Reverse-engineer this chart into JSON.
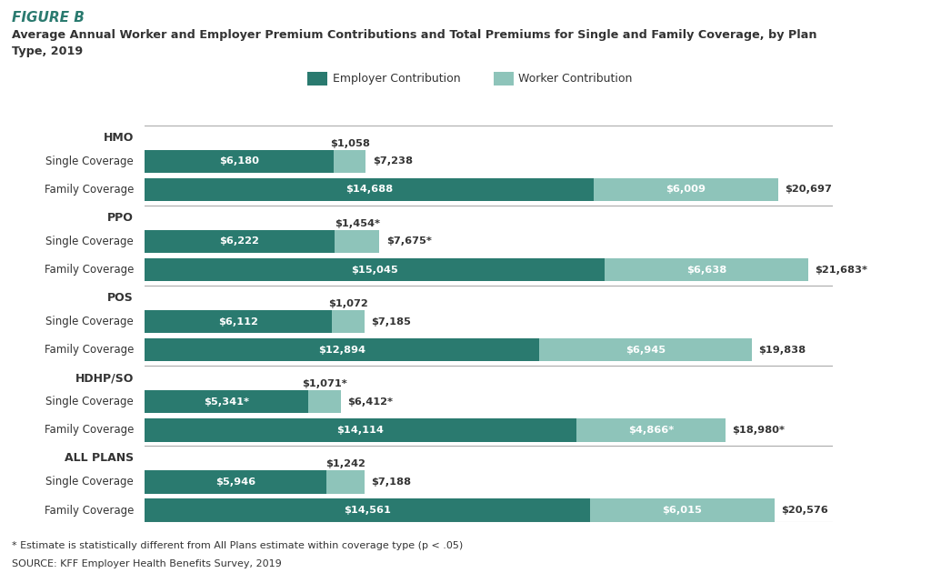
{
  "figure_label": "FIGURE B",
  "title_line1": "Average Annual Worker and Employer Premium Contributions and Total Premiums for Single and Family Coverage, by Plan",
  "title_line2": "Type, 2019",
  "employer_color": "#2a7a6f",
  "worker_color": "#8ec4ba",
  "background_color": "#ffffff",
  "text_color": "#333333",
  "footnote": "* Estimate is statistically different from All Plans estimate within coverage type (p < .05)",
  "source": "SOURCE: KFF Employer Health Benefits Survey, 2019",
  "legend_employer": "Employer Contribution",
  "legend_worker": "Worker Contribution",
  "max_val": 22500,
  "groups": [
    {
      "label": "HMO",
      "bold_label": false,
      "rows": [
        {
          "name": "Single Coverage",
          "employer": 6180,
          "worker": 1058,
          "employer_label": "$6,180",
          "worker_label": "$1,058",
          "total_label": "$7,238",
          "is_family": false
        },
        {
          "name": "Family Coverage",
          "employer": 14688,
          "worker": 6009,
          "employer_label": "$14,688",
          "worker_label": "$6,009",
          "total_label": "$20,697",
          "is_family": true
        }
      ]
    },
    {
      "label": "PPO",
      "bold_label": false,
      "rows": [
        {
          "name": "Single Coverage",
          "employer": 6222,
          "worker": 1454,
          "employer_label": "$6,222",
          "worker_label": "$1,454*",
          "total_label": "$7,675*",
          "is_family": false
        },
        {
          "name": "Family Coverage",
          "employer": 15045,
          "worker": 6638,
          "employer_label": "$15,045",
          "worker_label": "$6,638",
          "total_label": "$21,683*",
          "is_family": true
        }
      ]
    },
    {
      "label": "POS",
      "bold_label": false,
      "rows": [
        {
          "name": "Single Coverage",
          "employer": 6112,
          "worker": 1072,
          "employer_label": "$6,112",
          "worker_label": "$1,072",
          "total_label": "$7,185",
          "is_family": false
        },
        {
          "name": "Family Coverage",
          "employer": 12894,
          "worker": 6945,
          "employer_label": "$12,894",
          "worker_label": "$6,945",
          "total_label": "$19,838",
          "is_family": true
        }
      ]
    },
    {
      "label": "HDHP/SO",
      "bold_label": false,
      "rows": [
        {
          "name": "Single Coverage",
          "employer": 5341,
          "worker": 1071,
          "employer_label": "$5,341*",
          "worker_label": "$1,071*",
          "total_label": "$6,412*",
          "is_family": false
        },
        {
          "name": "Family Coverage",
          "employer": 14114,
          "worker": 4866,
          "employer_label": "$14,114",
          "worker_label": "$4,866*",
          "total_label": "$18,980*",
          "is_family": true
        }
      ]
    },
    {
      "label": "ALL PLANS",
      "bold_label": true,
      "rows": [
        {
          "name": "Single Coverage",
          "employer": 5946,
          "worker": 1242,
          "employer_label": "$5,946",
          "worker_label": "$1,242",
          "total_label": "$7,188",
          "is_family": false
        },
        {
          "name": "Family Coverage",
          "employer": 14561,
          "worker": 6015,
          "employer_label": "$14,561",
          "worker_label": "$6,015",
          "total_label": "$20,576",
          "is_family": true
        }
      ]
    }
  ]
}
